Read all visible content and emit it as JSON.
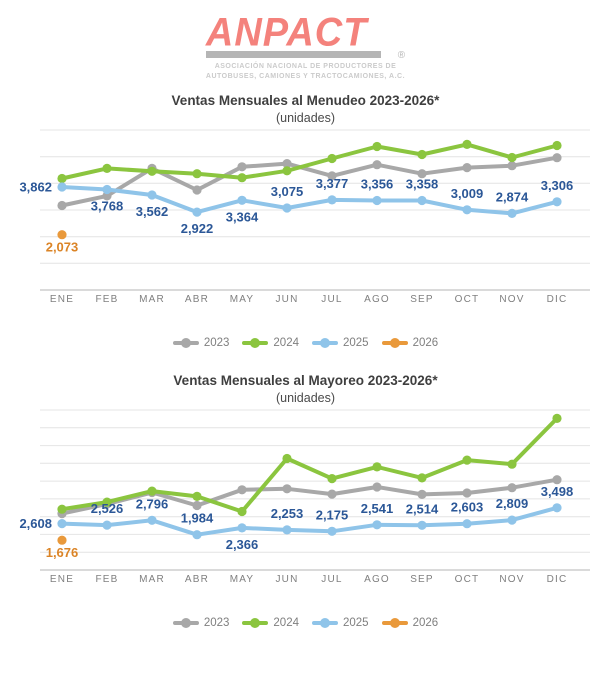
{
  "logo": {
    "brand": "ANPACT",
    "registered_mark": "®",
    "tagline_line1": "ASOCIACIÓN NACIONAL DE PRODUCTORES DE",
    "tagline_line2": "AUTOBUSES, CAMIONES Y TRACTOCAMIONES, A.C.",
    "brand_color": "#F4827C",
    "bar_color": "#B5B5B5",
    "tagline_color": "#CBCBCB"
  },
  "colors": {
    "series_2023": "#A8A8A8",
    "series_2024": "#8BC53F",
    "series_2025": "#8FC4E9",
    "series_2026": "#E9993B",
    "data_label": "#2B5797",
    "data_label_2026": "#DB8426",
    "gridline": "#E4E4E4",
    "axis_line": "#CDCDCD",
    "month_label": "#7F7F7F"
  },
  "chart_data": [
    {
      "type": "line",
      "title": "Ventas Mensuales al Menudeo 2023-2026*",
      "subtitle": "(unidades)",
      "categories": [
        "ENE",
        "FEB",
        "MAR",
        "ABR",
        "MAY",
        "JUN",
        "JUL",
        "AGO",
        "SEP",
        "OCT",
        "NOV",
        "DIC"
      ],
      "ylim": [
        0,
        6000
      ],
      "grid_step": 1000,
      "grid": true,
      "legend_position": "bottom",
      "legend": [
        "2023",
        "2024",
        "2025",
        "2026"
      ],
      "series": [
        {
          "name": "2023",
          "show_labels": false,
          "estimated": true,
          "values": [
            3170,
            3530,
            4560,
            3750,
            4620,
            4740,
            4280,
            4700,
            4360,
            4590,
            4660,
            4960
          ]
        },
        {
          "name": "2024",
          "show_labels": false,
          "estimated": true,
          "values": [
            4180,
            4560,
            4450,
            4360,
            4210,
            4470,
            4930,
            5380,
            5080,
            5460,
            4970,
            5420
          ]
        },
        {
          "name": "2025",
          "show_labels": true,
          "values": [
            3862,
            3768,
            3562,
            2922,
            3364,
            3075,
            3377,
            3356,
            3358,
            3009,
            2874,
            3306
          ],
          "label_placement": [
            "left",
            "below",
            "below",
            "below",
            "below",
            "above",
            "above",
            "above",
            "above",
            "above",
            "above",
            "above"
          ]
        },
        {
          "name": "2026",
          "show_labels": true,
          "values": [
            2073
          ],
          "label_placement": [
            "below"
          ]
        }
      ]
    },
    {
      "type": "line",
      "title": "Ventas Mensuales al Mayoreo 2023-2026*",
      "subtitle": "(unidades)",
      "categories": [
        "ENE",
        "FEB",
        "MAR",
        "ABR",
        "MAY",
        "JUN",
        "JUL",
        "AGO",
        "SEP",
        "OCT",
        "NOV",
        "DIC"
      ],
      "ylim": [
        0,
        9000
      ],
      "grid_step": 1000,
      "grid": true,
      "legend_position": "bottom",
      "legend": [
        "2023",
        "2024",
        "2025",
        "2026"
      ],
      "series": [
        {
          "name": "2023",
          "show_labels": false,
          "estimated": true,
          "values": [
            3170,
            3710,
            4360,
            3630,
            4510,
            4570,
            4270,
            4670,
            4250,
            4330,
            4630,
            5080
          ]
        },
        {
          "name": "2024",
          "show_labels": false,
          "estimated": true,
          "values": [
            3420,
            3820,
            4440,
            4140,
            3290,
            6270,
            5140,
            5800,
            5180,
            6180,
            5950,
            8530
          ]
        },
        {
          "name": "2025",
          "show_labels": true,
          "values": [
            2608,
            2526,
            2796,
            1984,
            2366,
            2253,
            2175,
            2541,
            2514,
            2603,
            2809,
            3498
          ],
          "label_placement": [
            "left",
            "above",
            "above",
            "above",
            "below",
            "above",
            "above",
            "above",
            "above",
            "above",
            "above",
            "above"
          ]
        },
        {
          "name": "2026",
          "show_labels": true,
          "values": [
            1676
          ],
          "label_placement": [
            "below"
          ]
        }
      ]
    }
  ]
}
